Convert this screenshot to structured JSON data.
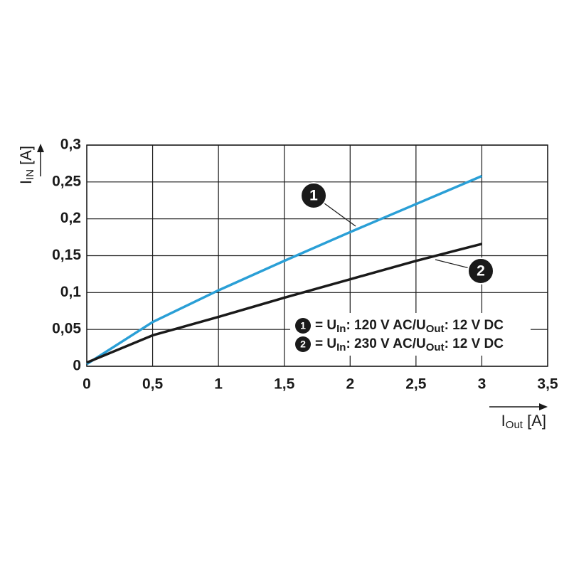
{
  "chart_data": {
    "type": "line",
    "x_label": [
      "I",
      "Out",
      " [A]"
    ],
    "y_label": [
      "I",
      "IN",
      " [A]"
    ],
    "x": [
      0,
      0.5,
      1,
      1.5,
      2,
      2.5,
      3
    ],
    "series": [
      {
        "label": "1",
        "name": [
          "= U",
          "In",
          ": 120 V AC/U",
          "Out",
          ": 12 V DC"
        ],
        "color": "#2a9fd6",
        "values": [
          0.003,
          0.06,
          0.103,
          0.143,
          0.182,
          0.22,
          0.258
        ]
      },
      {
        "label": "2",
        "name": [
          "= U",
          "In",
          ": 230 V AC/U",
          "Out",
          ": 12 V DC"
        ],
        "color": "#1a1a1a",
        "values": [
          0.005,
          0.042,
          0.067,
          0.093,
          0.118,
          0.143,
          0.166
        ]
      }
    ],
    "xlim": [
      0,
      3.5
    ],
    "xticks": [
      0,
      {
        "value": 0.5,
        "label": "0,5"
      },
      1,
      {
        "value": 1.5,
        "label": "1,5"
      },
      2,
      {
        "value": 2.5,
        "label": "2,5"
      },
      3,
      {
        "value": 3.5,
        "label": "3,5"
      }
    ],
    "ylim": [
      0,
      0.3
    ],
    "yticks": [
      0,
      {
        "value": 0.05,
        "label": "0,05"
      },
      {
        "value": 0.1,
        "label": "0,1"
      },
      {
        "value": 0.15,
        "label": "0,15"
      },
      {
        "value": 0.2,
        "label": "0,2"
      },
      {
        "value": 0.25,
        "label": "0,25"
      },
      {
        "value": 0.3,
        "label": "0,3"
      }
    ],
    "grid": true
  }
}
